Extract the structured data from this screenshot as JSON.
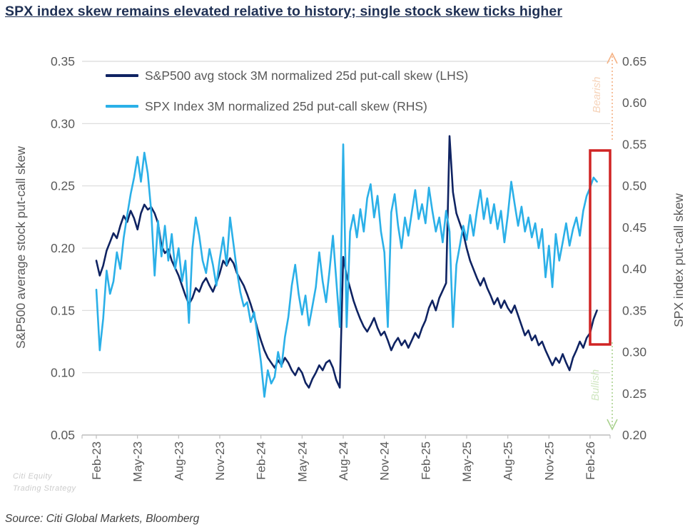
{
  "title": "SPX index skew remains elevated relative to history; single stock skew ticks higher",
  "source_note": "Source: Citi Global Markets, Bloomberg",
  "watermark": {
    "line1": "Citi Equity",
    "line2": "Trading Strategy"
  },
  "annotations": {
    "bearish_label": "Bearish",
    "bullish_label": "Bullish",
    "bearish_color": "#f4b183",
    "bearish_text_color": "#f6d3b9",
    "bullish_color": "#a9d18e",
    "bullish_text_color": "#cfe6c0",
    "highlight_box_color": "#d02424"
  },
  "chart_data": {
    "type": "line",
    "x_note": "x in months since Feb-2023, weekly samples (x = x_start + i*x_step_months)",
    "x_start": 0,
    "x_step_months": 0.25,
    "x_tick_labels": [
      "Feb-23",
      "May-23",
      "Aug-23",
      "Nov-23",
      "Feb-24",
      "May-24",
      "Aug-24",
      "Nov-24",
      "Feb-25",
      "May-25",
      "Aug-25",
      "Nov-25",
      "Feb-26"
    ],
    "left_axis": {
      "label": "S&P500 average stock put-call skew",
      "min": 0.05,
      "max": 0.35,
      "ticks": [
        0.35,
        0.3,
        0.25,
        0.2,
        0.15,
        0.1,
        0.05
      ]
    },
    "right_axis": {
      "label": "SPX index put-call skew",
      "min": 0.2,
      "max": 0.65,
      "ticks": [
        0.65,
        0.6,
        0.55,
        0.5,
        0.45,
        0.4,
        0.35,
        0.3,
        0.25,
        0.2
      ]
    },
    "grid": true,
    "grid_color": "#d9d9d9",
    "axis_color": "#bfbfbf",
    "tick_text_color": "#595959",
    "legend_position": "top-left",
    "series": [
      {
        "name": "S&P500 avg stock 3M normalized 25d put-call skew (LHS)",
        "axis": "left",
        "color": "#0f2362",
        "values": [
          0.19,
          0.178,
          0.186,
          0.198,
          0.205,
          0.212,
          0.208,
          0.218,
          0.226,
          0.221,
          0.23,
          0.224,
          0.215,
          0.228,
          0.235,
          0.231,
          0.233,
          0.228,
          0.22,
          0.202,
          0.196,
          0.199,
          0.19,
          0.184,
          0.178,
          0.17,
          0.162,
          0.155,
          0.16,
          0.168,
          0.165,
          0.172,
          0.176,
          0.17,
          0.165,
          0.172,
          0.18,
          0.19,
          0.186,
          0.192,
          0.188,
          0.18,
          0.175,
          0.17,
          0.163,
          0.155,
          0.146,
          0.135,
          0.126,
          0.118,
          0.112,
          0.108,
          0.104,
          0.11,
          0.106,
          0.112,
          0.108,
          0.102,
          0.098,
          0.104,
          0.1,
          0.092,
          0.088,
          0.095,
          0.1,
          0.106,
          0.102,
          0.108,
          0.11,
          0.104,
          0.094,
          0.088,
          0.193,
          0.178,
          0.168,
          0.158,
          0.15,
          0.143,
          0.137,
          0.133,
          0.138,
          0.144,
          0.136,
          0.13,
          0.133,
          0.126,
          0.118,
          0.124,
          0.128,
          0.122,
          0.126,
          0.12,
          0.126,
          0.132,
          0.128,
          0.136,
          0.142,
          0.152,
          0.158,
          0.15,
          0.16,
          0.166,
          0.172,
          0.29,
          0.245,
          0.228,
          0.22,
          0.212,
          0.2,
          0.19,
          0.183,
          0.176,
          0.17,
          0.176,
          0.168,
          0.162,
          0.155,
          0.16,
          0.152,
          0.158,
          0.152,
          0.148,
          0.154,
          0.146,
          0.138,
          0.13,
          0.134,
          0.126,
          0.13,
          0.122,
          0.125,
          0.118,
          0.112,
          0.106,
          0.112,
          0.108,
          0.115,
          0.108,
          0.102,
          0.112,
          0.118,
          0.125,
          0.12,
          0.128,
          0.132,
          0.143,
          0.15
        ]
      },
      {
        "name": "SPX Index 3M normalized 25d put-call skew (RHS)",
        "axis": "right",
        "color": "#2bb0e8",
        "values": [
          0.375,
          0.302,
          0.34,
          0.398,
          0.37,
          0.385,
          0.42,
          0.4,
          0.438,
          0.465,
          0.49,
          0.51,
          0.535,
          0.505,
          0.54,
          0.515,
          0.47,
          0.392,
          0.458,
          0.415,
          0.452,
          0.41,
          0.442,
          0.4,
          0.425,
          0.385,
          0.41,
          0.335,
          0.425,
          0.462,
          0.44,
          0.41,
          0.395,
          0.424,
          0.405,
          0.38,
          0.412,
          0.438,
          0.405,
          0.462,
          0.43,
          0.398,
          0.372,
          0.355,
          0.36,
          0.336,
          0.348,
          0.32,
          0.288,
          0.246,
          0.278,
          0.262,
          0.27,
          0.3,
          0.282,
          0.318,
          0.342,
          0.38,
          0.405,
          0.37,
          0.345,
          0.368,
          0.332,
          0.355,
          0.378,
          0.42,
          0.385,
          0.36,
          0.398,
          0.44,
          0.385,
          0.33,
          0.55,
          0.33,
          0.445,
          0.465,
          0.438,
          0.472,
          0.445,
          0.485,
          0.502,
          0.462,
          0.488,
          0.445,
          0.42,
          0.33,
          0.468,
          0.49,
          0.452,
          0.425,
          0.462,
          0.44,
          0.468,
          0.495,
          0.46,
          0.478,
          0.455,
          0.498,
          0.47,
          0.445,
          0.462,
          0.432,
          0.47,
          0.445,
          0.33,
          0.405,
          0.428,
          0.452,
          0.435,
          0.465,
          0.44,
          0.47,
          0.495,
          0.46,
          0.485,
          0.455,
          0.478,
          0.448,
          0.47,
          0.432,
          0.465,
          0.505,
          0.478,
          0.452,
          0.475,
          0.445,
          0.462,
          0.438,
          0.455,
          0.425,
          0.448,
          0.39,
          0.428,
          0.378,
          0.442,
          0.41,
          0.432,
          0.455,
          0.428,
          0.448,
          0.462,
          0.44,
          0.47,
          0.488,
          0.498,
          0.51,
          0.505
        ]
      }
    ]
  }
}
